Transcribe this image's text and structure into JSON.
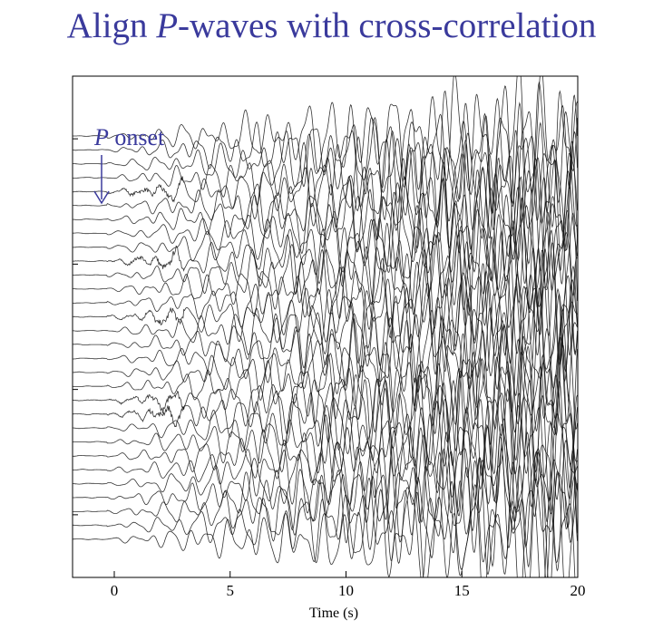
{
  "page": {
    "title_before": "Align ",
    "title_italic": "P",
    "title_after": "-waves with cross-correlation"
  },
  "colors": {
    "title": "#3a3a9c",
    "annotation": "#3a3a9c",
    "traces": "#111111",
    "axes": "#000000"
  },
  "chart_data": {
    "type": "line",
    "title": "Align P-waves with cross-correlation",
    "xlabel": "Time (s)",
    "ylabel": "",
    "xlim": [
      -1.8,
      20
    ],
    "xticks": [
      0,
      5,
      10,
      15,
      20
    ],
    "xtick_labels": [
      "0",
      "5",
      "10",
      "15",
      "20"
    ],
    "ylim": [
      0,
      31
    ],
    "y_tick_count": 4,
    "trace_count": 30,
    "onset_time": 0,
    "series_description": "30 stacked seismogram traces (offset vertically), quiet before 0 s, amplitude growing with time up to 20 s",
    "annotation": {
      "italic": "P",
      "text": " onset",
      "x": -0.6
    }
  }
}
